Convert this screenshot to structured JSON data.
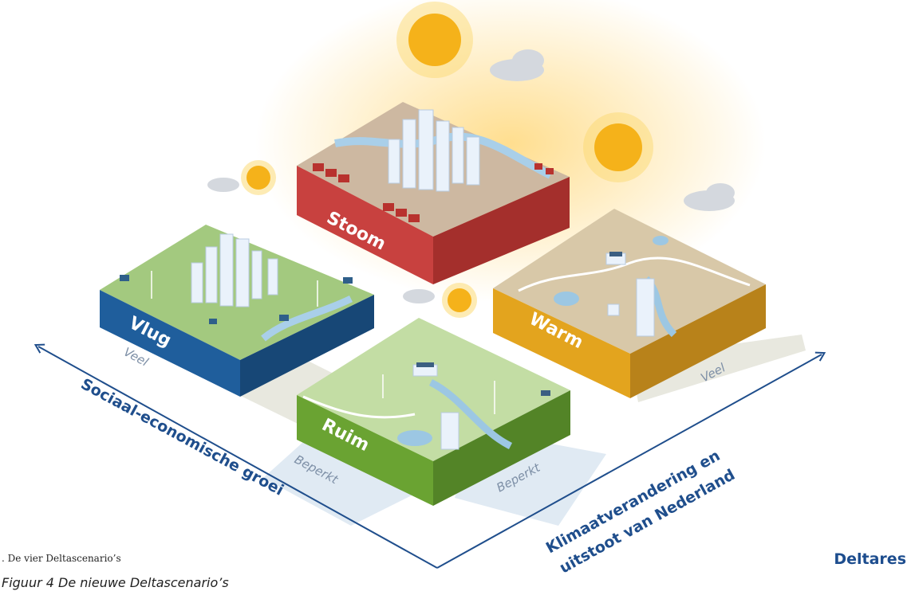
{
  "scenarios": {
    "stoom": {
      "label": "Stoom",
      "color": "#c8413f"
    },
    "vlug": {
      "label": "Vlug",
      "color": "#1f5e9c"
    },
    "warm": {
      "label": "Warm",
      "color": "#e3a41e"
    },
    "ruim": {
      "label": "Ruim",
      "color": "#6aa332"
    }
  },
  "axes": {
    "left": {
      "title": "Sociaal-economische groei",
      "high": "Veel",
      "low": "Beperkt"
    },
    "right": {
      "title_line1": "Klimaatverandering en",
      "title_line2": "uitstoot van Nederland",
      "high": "Veel",
      "low": "Beperkt"
    }
  },
  "source_label": ". De vier Deltascenario’s",
  "caption": "Figuur 4 De nieuwe Deltascenario’s",
  "brand": "Deltares"
}
